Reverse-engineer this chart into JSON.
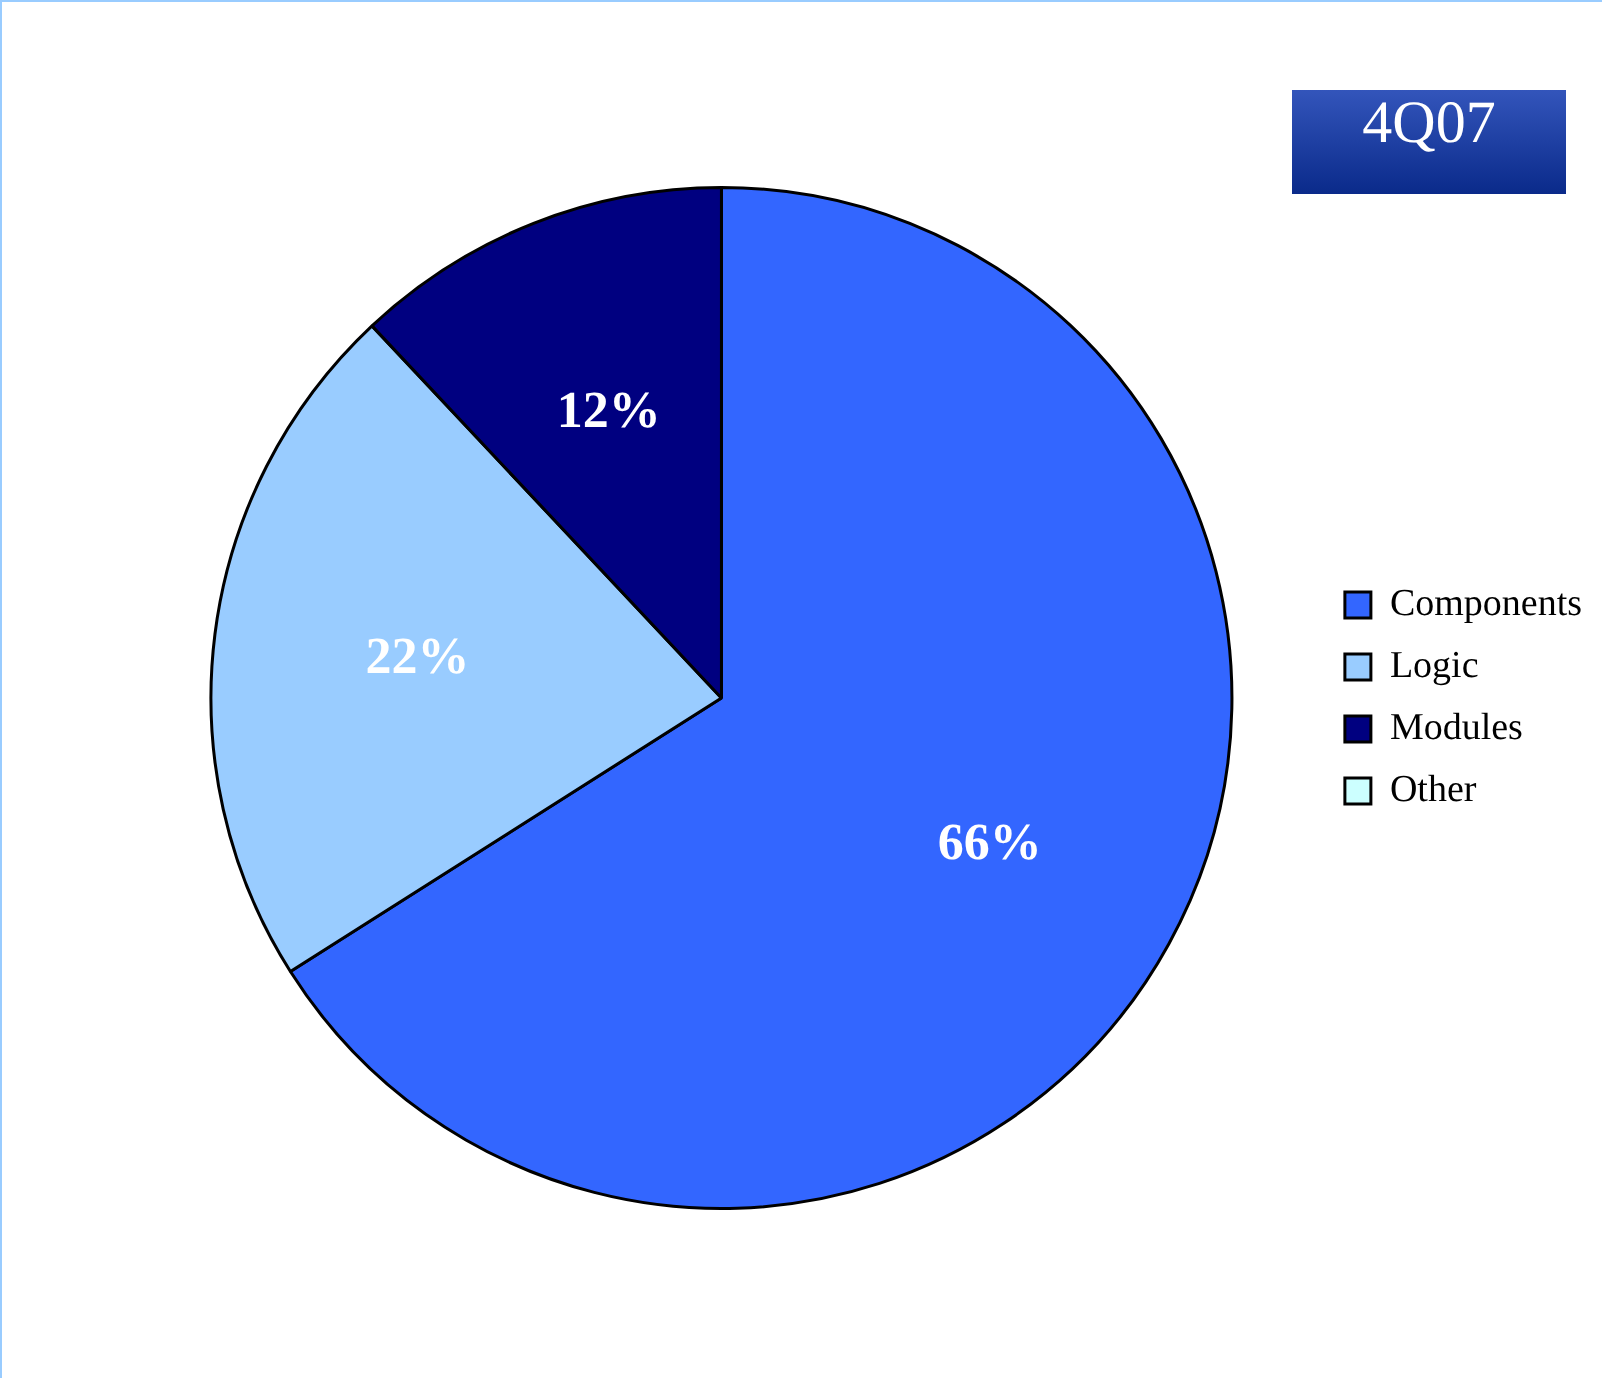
{
  "chart_data": {
    "type": "pie",
    "title": "4Q07",
    "categories": [
      "Components",
      "Logic",
      "Modules",
      "Other"
    ],
    "values": [
      66,
      22,
      12,
      0
    ],
    "colors": [
      "#3366ff",
      "#99ccff",
      "#000080",
      "#ccffff"
    ],
    "value_labels": [
      "66%",
      "22%",
      "12%",
      null
    ],
    "legend": "right"
  }
}
